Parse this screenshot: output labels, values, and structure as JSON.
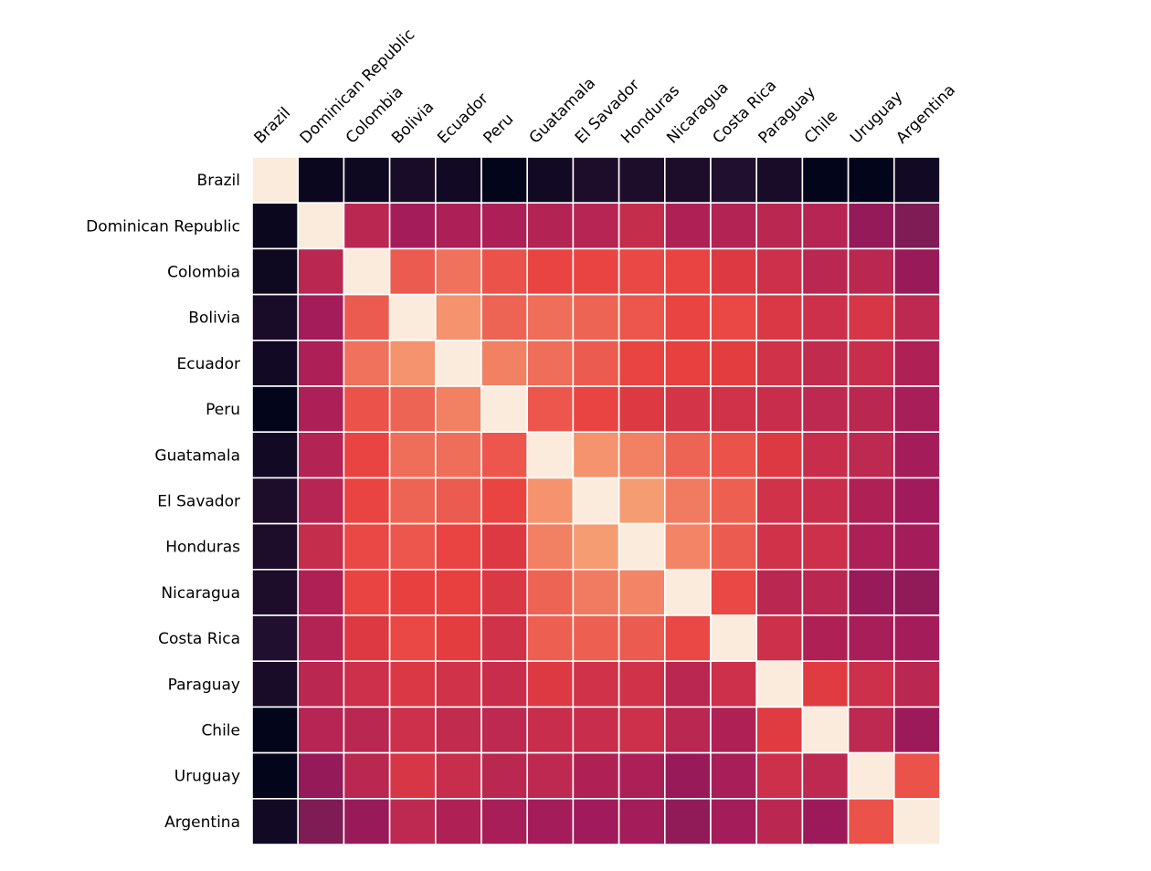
{
  "chart_data": {
    "type": "heatmap",
    "title": "",
    "xlabel": "",
    "ylabel": "",
    "grid": true,
    "legend": "none",
    "x_axis_position": "top",
    "categories": [
      "Brazil",
      "Dominican Republic",
      "Colombia",
      "Bolivia",
      "Ecuador",
      "Peru",
      "Guatamala",
      "El Savador",
      "Honduras",
      "Nicaragua",
      "Costa Rica",
      "Paraguay",
      "Chile",
      "Uruguay",
      "Argentina"
    ],
    "value_range": [
      0,
      1
    ],
    "colormap_stops": [
      "#03051a",
      "#4c1d4b",
      "#a11a5b",
      "#e83f3f",
      "#f69c73",
      "#faebdd"
    ],
    "values": [
      [
        1.0,
        0.02,
        0.03,
        0.06,
        0.04,
        0.0,
        0.04,
        0.07,
        0.07,
        0.07,
        0.08,
        0.06,
        0.0,
        0.0,
        0.04
      ],
      [
        0.02,
        1.0,
        0.47,
        0.41,
        0.43,
        0.43,
        0.45,
        0.46,
        0.5,
        0.44,
        0.45,
        0.47,
        0.46,
        0.37,
        0.32
      ],
      [
        0.03,
        0.47,
        1.0,
        0.66,
        0.71,
        0.64,
        0.61,
        0.61,
        0.62,
        0.61,
        0.57,
        0.52,
        0.47,
        0.47,
        0.38
      ],
      [
        0.06,
        0.41,
        0.66,
        1.0,
        0.78,
        0.68,
        0.7,
        0.68,
        0.65,
        0.61,
        0.62,
        0.56,
        0.52,
        0.55,
        0.48
      ],
      [
        0.04,
        0.43,
        0.71,
        0.78,
        1.0,
        0.74,
        0.7,
        0.66,
        0.61,
        0.6,
        0.59,
        0.53,
        0.49,
        0.51,
        0.44
      ],
      [
        0.0,
        0.43,
        0.64,
        0.68,
        0.74,
        1.0,
        0.65,
        0.61,
        0.57,
        0.54,
        0.53,
        0.51,
        0.48,
        0.47,
        0.42
      ],
      [
        0.04,
        0.45,
        0.61,
        0.7,
        0.7,
        0.65,
        1.0,
        0.78,
        0.74,
        0.68,
        0.64,
        0.57,
        0.51,
        0.48,
        0.41
      ],
      [
        0.07,
        0.46,
        0.61,
        0.68,
        0.66,
        0.61,
        0.78,
        1.0,
        0.8,
        0.73,
        0.67,
        0.53,
        0.51,
        0.44,
        0.4
      ],
      [
        0.07,
        0.5,
        0.62,
        0.65,
        0.61,
        0.57,
        0.74,
        0.8,
        1.0,
        0.75,
        0.66,
        0.53,
        0.52,
        0.43,
        0.41
      ],
      [
        0.07,
        0.44,
        0.61,
        0.6,
        0.6,
        0.56,
        0.68,
        0.73,
        0.75,
        1.0,
        0.62,
        0.47,
        0.47,
        0.38,
        0.36
      ],
      [
        0.08,
        0.45,
        0.57,
        0.62,
        0.59,
        0.53,
        0.67,
        0.67,
        0.66,
        0.62,
        1.0,
        0.52,
        0.44,
        0.42,
        0.41
      ],
      [
        0.06,
        0.47,
        0.52,
        0.56,
        0.53,
        0.51,
        0.57,
        0.53,
        0.53,
        0.47,
        0.52,
        1.0,
        0.58,
        0.52,
        0.47
      ],
      [
        0.0,
        0.46,
        0.47,
        0.52,
        0.49,
        0.48,
        0.51,
        0.51,
        0.52,
        0.47,
        0.44,
        0.58,
        1.0,
        0.48,
        0.39
      ],
      [
        0.0,
        0.37,
        0.47,
        0.55,
        0.51,
        0.47,
        0.48,
        0.44,
        0.43,
        0.38,
        0.42,
        0.52,
        0.48,
        1.0,
        0.64
      ],
      [
        0.04,
        0.32,
        0.38,
        0.48,
        0.44,
        0.42,
        0.41,
        0.4,
        0.41,
        0.36,
        0.41,
        0.47,
        0.39,
        0.64,
        1.0
      ]
    ]
  }
}
